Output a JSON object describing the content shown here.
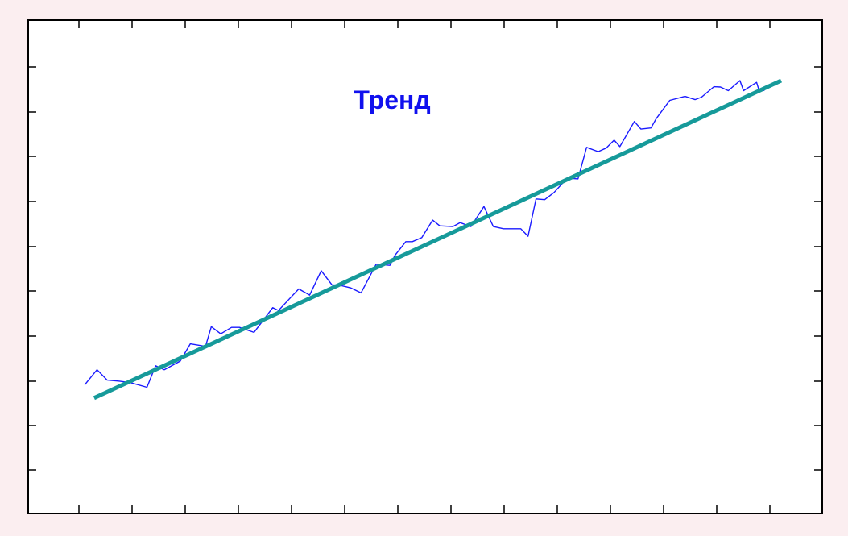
{
  "chart_data": {
    "type": "line",
    "title": "Тренд",
    "xlabel": "",
    "ylabel": "",
    "xlim": [
      0,
      100
    ],
    "ylim": [
      0,
      100
    ],
    "grid": false,
    "legend": "none",
    "colors": {
      "series": "#1a1aff",
      "trend": "#169a9a",
      "title": "#1010ee",
      "background": "#fbeef0",
      "plot_background": "#ffffff"
    },
    "series": [
      {
        "x": [
          3.7,
          5.4,
          6.8,
          8.5,
          10.0,
          12.3,
          13.5,
          14.7,
          16.9,
          18.3,
          20.4,
          21.2,
          22.5,
          24.0,
          25.1,
          27.1,
          29.7,
          30.5,
          32.2,
          33.3,
          34.8,
          36.4,
          37.9,
          38.8,
          40.5,
          41.9,
          44.0,
          45.9,
          46.6,
          48.1,
          49.0,
          50.3,
          51.8,
          52.8,
          54.6,
          55.6,
          57.1,
          58.9,
          60.2,
          61.6,
          64.0,
          65.0,
          66.1,
          67.3,
          68.6,
          70.4,
          71.9,
          73.1,
          74.7,
          75.8,
          76.9,
          77.7,
          79.7,
          80.6,
          82.0,
          82.7,
          84.6,
          86.7,
          88.1,
          89.0,
          90.7,
          91.6,
          92.7,
          94.3,
          94.8,
          96.6,
          96.9,
          97.7
        ],
        "y": [
          15.2,
          19.4,
          16.5,
          16.2,
          15.8,
          14.5,
          20.5,
          19.4,
          21.8,
          26.6,
          25.9,
          31.4,
          29.4,
          31.2,
          31.2,
          29.8,
          36.7,
          35.9,
          39.6,
          41.9,
          40.2,
          47.0,
          43.0,
          43.0,
          42.2,
          40.8,
          48.8,
          48.5,
          51.3,
          55.1,
          55.1,
          56.2,
          61.1,
          59.5,
          59.3,
          60.4,
          59.3,
          64.9,
          59.3,
          58.7,
          58.7,
          56.6,
          67.0,
          66.8,
          68.8,
          72.8,
          72.6,
          81.4,
          80.2,
          81.2,
          83.4,
          81.6,
          88.6,
          86.5,
          86.8,
          89.3,
          94.5,
          95.6,
          94.7,
          95.4,
          98.3,
          98.2,
          97.2,
          100.0,
          97.2,
          99.5,
          97.5,
          97.2
        ]
      },
      {
        "x": [
          5,
          100
        ],
        "y": [
          11.5,
          100
        ]
      }
    ]
  }
}
